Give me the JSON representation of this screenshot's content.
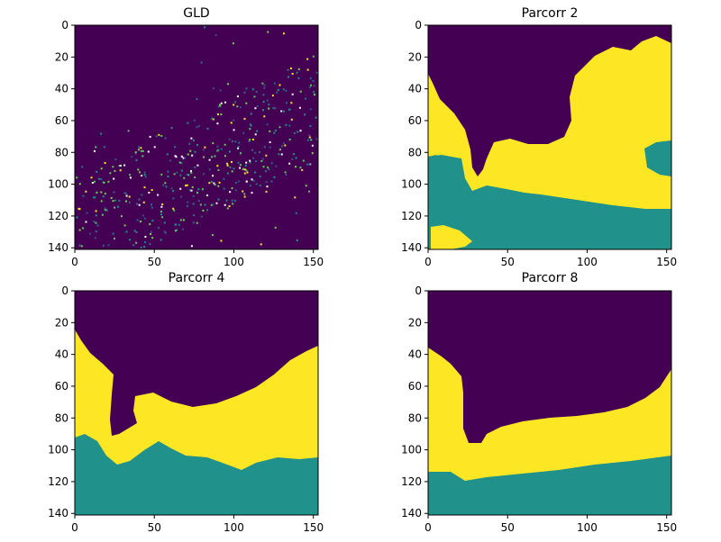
{
  "figure": {
    "background": "#ffffff"
  },
  "chart_data": [
    {
      "type": "heatmap",
      "title": "GLD",
      "xlabel": "",
      "ylabel": "",
      "xlim": [
        0,
        153
      ],
      "ylim": [
        141,
        0
      ],
      "x_ticks": [
        0,
        50,
        100,
        150
      ],
      "y_ticks": [
        0,
        20,
        40,
        60,
        80,
        100,
        120,
        140
      ],
      "colormap": "viridis",
      "description_values": "dark purple background with sparse scattered speckles concentrated in the lower middle region"
    },
    {
      "type": "heatmap",
      "title": "Parcorr 2",
      "xlabel": "",
      "ylabel": "",
      "xlim": [
        0,
        153
      ],
      "ylim": [
        141,
        0
      ],
      "x_ticks": [
        0,
        50,
        100,
        150
      ],
      "y_ticks": [
        0,
        20,
        40,
        60,
        80,
        100,
        120,
        140
      ],
      "classes": [
        {
          "value": 0,
          "color": "#440154"
        },
        {
          "value": 1,
          "color": "#21918c"
        },
        {
          "value": 2,
          "color": "#fde725"
        }
      ]
    },
    {
      "type": "heatmap",
      "title": "Parcorr 4",
      "xlabel": "",
      "ylabel": "",
      "xlim": [
        0,
        153
      ],
      "ylim": [
        141,
        0
      ],
      "x_ticks": [
        0,
        50,
        100,
        150
      ],
      "y_ticks": [
        0,
        20,
        40,
        60,
        80,
        100,
        120,
        140
      ],
      "classes": [
        {
          "value": 0,
          "color": "#440154"
        },
        {
          "value": 1,
          "color": "#21918c"
        },
        {
          "value": 2,
          "color": "#fde725"
        }
      ]
    },
    {
      "type": "heatmap",
      "title": "Parcorr 8",
      "xlabel": "",
      "ylabel": "",
      "xlim": [
        0,
        153
      ],
      "ylim": [
        141,
        0
      ],
      "x_ticks": [
        0,
        50,
        100,
        150
      ],
      "y_ticks": [
        0,
        20,
        40,
        60,
        80,
        100,
        120,
        140
      ],
      "classes": [
        {
          "value": 0,
          "color": "#440154"
        },
        {
          "value": 1,
          "color": "#21918c"
        },
        {
          "value": 2,
          "color": "#fde725"
        }
      ]
    }
  ],
  "colors": {
    "purple": "#440154",
    "teal": "#21918c",
    "yellow": "#fde725"
  }
}
